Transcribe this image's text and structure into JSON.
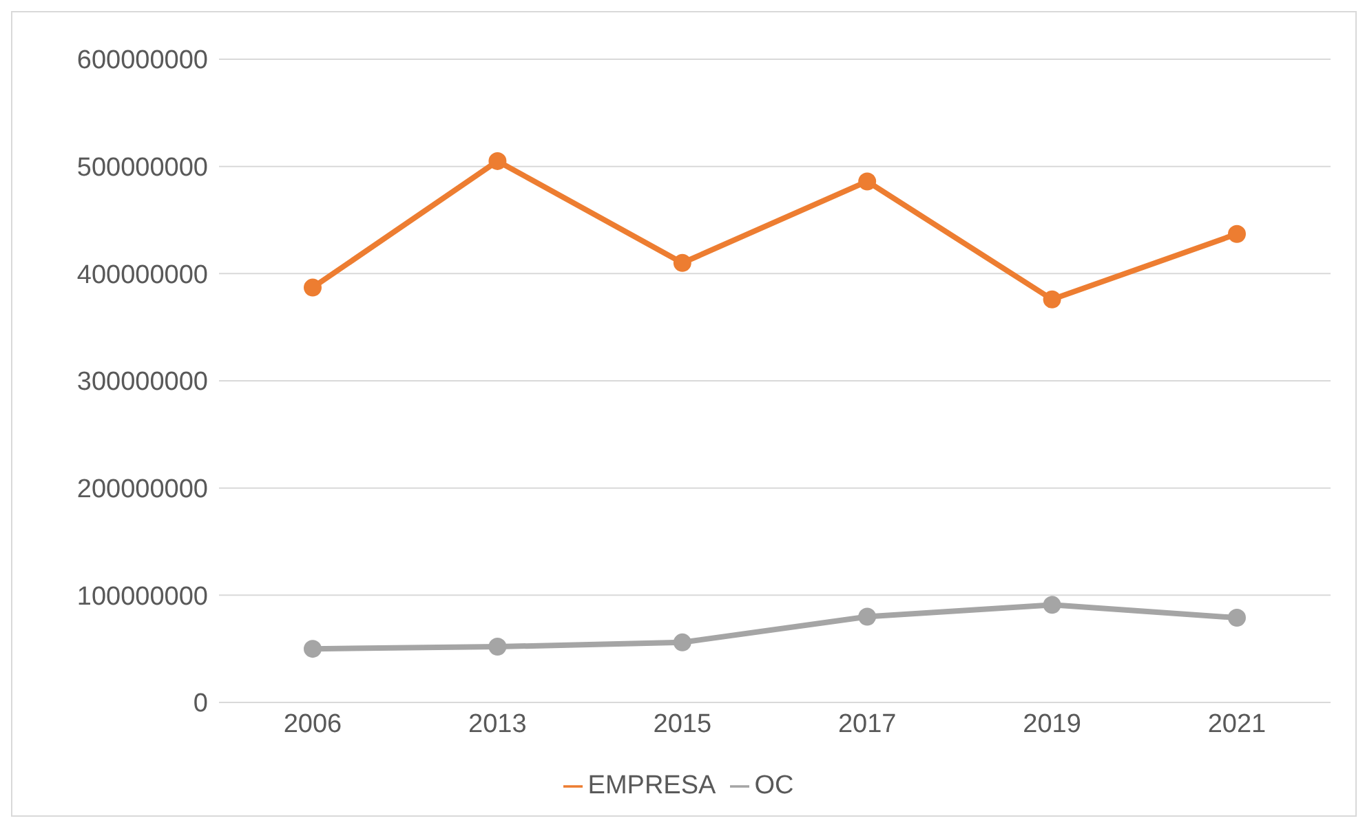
{
  "chart_data": {
    "type": "line",
    "categories": [
      "2006",
      "2013",
      "2015",
      "2017",
      "2019",
      "2021"
    ],
    "series": [
      {
        "name": "EMPRESA",
        "color": "#ed7d31",
        "values": [
          387000000,
          505000000,
          410000000,
          486000000,
          376000000,
          437000000
        ]
      },
      {
        "name": "OC",
        "color": "#a5a5a5",
        "values": [
          50000000,
          52000000,
          56000000,
          80000000,
          91000000,
          79000000
        ]
      }
    ],
    "ylim": [
      0,
      600000000
    ],
    "yticks": [
      0,
      100000000,
      200000000,
      300000000,
      400000000,
      500000000,
      600000000
    ],
    "grid": "y",
    "legend": "bottom",
    "marker": "circle",
    "line_style": "solid"
  }
}
